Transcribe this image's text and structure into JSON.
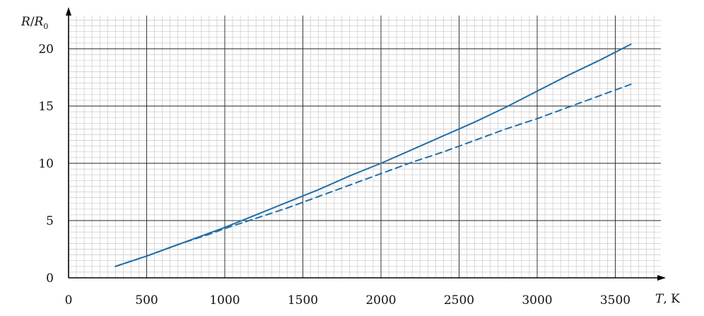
{
  "chart_data": {
    "type": "line",
    "xlabel": "T, K",
    "ylabel": "R/R0",
    "xlim": [
      0,
      3800
    ],
    "ylim": [
      0,
      23
    ],
    "x_ticks": [
      0,
      500,
      1000,
      1500,
      2000,
      2500,
      3000,
      3500
    ],
    "y_ticks": [
      0,
      5,
      10,
      15,
      20
    ],
    "grid": true,
    "series": [
      {
        "style": "solid",
        "color": "#1f6fa8",
        "x": [
          300,
          500,
          700,
          900,
          1000,
          1200,
          1400,
          1600,
          1800,
          2000,
          2200,
          2400,
          2600,
          2800,
          3000,
          3200,
          3400,
          3600
        ],
        "y": [
          1.0,
          1.9,
          2.9,
          3.9,
          4.4,
          5.5,
          6.6,
          7.7,
          8.9,
          10.0,
          11.2,
          12.4,
          13.6,
          14.9,
          16.3,
          17.7,
          19.0,
          20.4
        ]
      },
      {
        "style": "dashed",
        "color": "#1f6fa8",
        "x": [
          300,
          500,
          700,
          900,
          1000,
          1200,
          1400,
          1600,
          1800,
          2000,
          2200,
          2400,
          2600,
          2800,
          3000,
          3200,
          3400,
          3600
        ],
        "y": [
          1.0,
          1.9,
          2.9,
          3.8,
          4.3,
          5.2,
          6.1,
          7.1,
          8.1,
          9.1,
          10.1,
          11.0,
          12.0,
          13.0,
          13.9,
          14.9,
          15.9,
          16.9
        ]
      }
    ]
  }
}
